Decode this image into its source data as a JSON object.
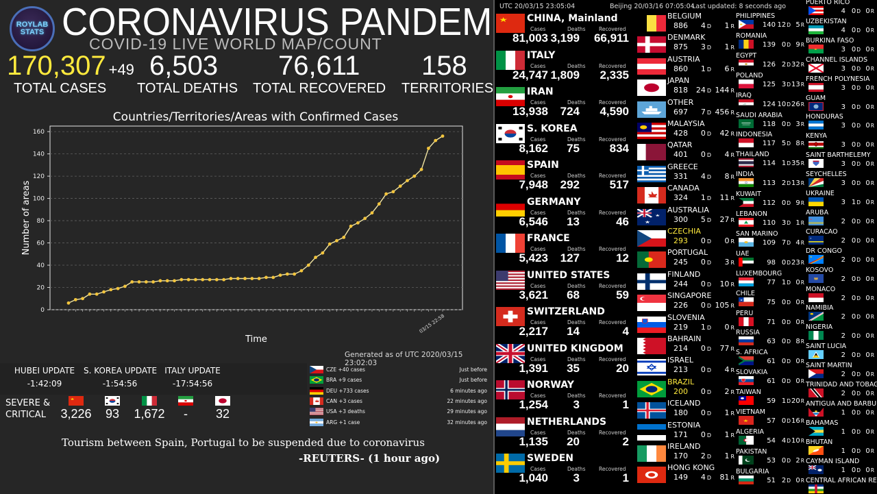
{
  "header": {
    "logo_lines": [
      "ROYLAB",
      "STATS"
    ],
    "title": "CORONAVIRUS PANDEMIC",
    "subtitle": "COVID-19 LIVE WORLD MAP/COUNT",
    "total_cases": "170,307",
    "cases_delta": "+49",
    "total_deaths": "6,503",
    "total_recovered": "76,611",
    "territories": "158",
    "total_cases_label": "TOTAL CASES",
    "total_deaths_label": "TOTAL DEATHS",
    "total_recovered_label": "TOTAL RECOVERED",
    "territories_label": "TERRITORIES",
    "accent_color": "#ffea3d"
  },
  "times": {
    "utc": "UTC 20/03/15 23:05:04",
    "beijing": "Beijing 20/03/16 07:05:04",
    "last_updated": "Last updated: 8 seconds ago"
  },
  "chart_data": {
    "type": "line",
    "title": "Countries/Territories/Areas with Confirmed Cases",
    "xlabel": "Time",
    "ylabel": "Number of areas",
    "ylim": [
      0,
      165
    ],
    "yticks": [
      0,
      20,
      40,
      60,
      80,
      100,
      120,
      140,
      160
    ],
    "grid": true,
    "last_x_label": "03/15 22:58",
    "line_color": "#f3e6a3",
    "marker_color": "#f2c43c",
    "series": [
      {
        "values": [
          6,
          9,
          10,
          14,
          14,
          16,
          18,
          19,
          21,
          25,
          25,
          25,
          25,
          26,
          26,
          26,
          27,
          27,
          27,
          27,
          27,
          27,
          27,
          28,
          28,
          28,
          28,
          28,
          29,
          29,
          31,
          32,
          32,
          35,
          40,
          47,
          51,
          59,
          62,
          65,
          75,
          78,
          82,
          87,
          95,
          104,
          106,
          111,
          116,
          120,
          126,
          145,
          152,
          156
        ]
      }
    ]
  },
  "generated": "Generated as of UTC 2020/03/15 23:02:03",
  "updates": {
    "hubei_label": "HUBEI UPDATE",
    "hubei_value": "-1:42:09",
    "korea_label": "S. KOREA UPDATE",
    "korea_value": "-1:54:56",
    "italy_label": "ITALY UPDATE",
    "italy_value": "-17:54:56"
  },
  "severe": {
    "label_line1": "SEVERE &",
    "label_line2": "CRITICAL",
    "items": [
      {
        "flag": "china-flag-icon",
        "value": "3,226"
      },
      {
        "flag": "south-korea-flag-icon",
        "value": "93"
      },
      {
        "flag": "italy-flag-icon",
        "value": "1,672"
      },
      {
        "flag": "iran-flag-icon",
        "value": "-"
      },
      {
        "flag": "japan-flag-icon",
        "value": "32"
      }
    ]
  },
  "news_feed": [
    {
      "flag": "czech-flag-icon",
      "text": "CZE +40 cases",
      "time": "Just before"
    },
    {
      "flag": "brazil-flag-icon",
      "text": "BRA +9 cases",
      "time": "Just before"
    },
    {
      "flag": "germany-flag-icon",
      "text": "DEU +733 cases",
      "time": "6 minutes ago"
    },
    {
      "flag": "canada-flag-icon",
      "text": "CAN +3 cases",
      "time": "22 minutes ago"
    },
    {
      "flag": "usa-flag-icon",
      "text": "USA +3 deaths",
      "time": "29 minutes ago"
    },
    {
      "flag": "argentina-flag-icon",
      "text": "ARG +1 case",
      "time": "32 minutes ago"
    }
  ],
  "headline": "Tourism between Spain, Portugal to be suspended due to coronavirus",
  "headline_source": "-REUTERS- (1 hour ago)",
  "col_labels": {
    "cases": "Cases",
    "deaths": "Deaths",
    "recovered": "Recovered"
  },
  "big_countries": [
    {
      "name": "CHINA, Mainland",
      "flag": "china-flag-icon",
      "cases": "81,003",
      "deaths": "3,199",
      "recovered": "66,911"
    },
    {
      "name": "ITALY",
      "flag": "italy-flag-icon",
      "cases": "24,747",
      "deaths": "1,809",
      "recovered": "2,335"
    },
    {
      "name": "IRAN",
      "flag": "iran-flag-icon",
      "cases": "13,938",
      "deaths": "724",
      "recovered": "4,590"
    },
    {
      "name": "S. KOREA",
      "flag": "south-korea-flag-icon",
      "cases": "8,162",
      "deaths": "75",
      "recovered": "834"
    },
    {
      "name": "SPAIN",
      "flag": "spain-flag-icon",
      "cases": "7,948",
      "deaths": "292",
      "recovered": "517"
    },
    {
      "name": "GERMANY",
      "flag": "germany-flag-icon",
      "cases": "6,546",
      "deaths": "13",
      "recovered": "46"
    },
    {
      "name": "FRANCE",
      "flag": "france-flag-icon",
      "cases": "5,423",
      "deaths": "127",
      "recovered": "12"
    },
    {
      "name": "UNITED STATES",
      "flag": "usa-flag-icon",
      "cases": "3,621",
      "deaths": "68",
      "recovered": "59"
    },
    {
      "name": "SWITZERLAND",
      "flag": "switzerland-flag-icon",
      "cases": "2,217",
      "deaths": "14",
      "recovered": "4"
    },
    {
      "name": "UNITED KINGDOM",
      "flag": "uk-flag-icon",
      "cases": "1,391",
      "deaths": "35",
      "recovered": "20"
    },
    {
      "name": "NORWAY",
      "flag": "norway-flag-icon",
      "cases": "1,254",
      "deaths": "3",
      "recovered": "1"
    },
    {
      "name": "NETHERLANDS",
      "flag": "netherlands-flag-icon",
      "cases": "1,135",
      "deaths": "20",
      "recovered": "2"
    },
    {
      "name": "SWEDEN",
      "flag": "sweden-flag-icon",
      "cases": "1,040",
      "deaths": "3",
      "recovered": "1"
    }
  ],
  "mid_countries": [
    {
      "name": "BELGIUM",
      "flag": "belgium-flag-icon",
      "c": "886",
      "d": "4",
      "r": "1"
    },
    {
      "name": "DENMARK",
      "flag": "denmark-flag-icon",
      "c": "875",
      "d": "3",
      "r": "1"
    },
    {
      "name": "AUSTRIA",
      "flag": "austria-flag-icon",
      "c": "860",
      "d": "1",
      "r": "6"
    },
    {
      "name": "JAPAN",
      "flag": "japan-flag-icon",
      "c": "818",
      "d": "24",
      "r": "144"
    },
    {
      "name": "OTHER",
      "flag": "cruise-ship-icon",
      "c": "697",
      "d": "7",
      "r": "456"
    },
    {
      "name": "MALAYSIA",
      "flag": "malaysia-flag-icon",
      "c": "428",
      "d": "0",
      "r": "42"
    },
    {
      "name": "QATAR",
      "flag": "qatar-flag-icon",
      "c": "401",
      "d": "0",
      "r": "4"
    },
    {
      "name": "GREECE",
      "flag": "greece-flag-icon",
      "c": "331",
      "d": "4",
      "r": "8"
    },
    {
      "name": "CANADA",
      "flag": "canada-flag-icon",
      "c": "324",
      "d": "1",
      "r": "11"
    },
    {
      "name": "AUSTRALIA",
      "flag": "australia-flag-icon",
      "c": "300",
      "d": "5",
      "r": "27"
    },
    {
      "name": "CZECHIA",
      "flag": "czech-flag-icon",
      "c": "293",
      "d": "0",
      "r": "0",
      "highlight": "#ffea3d"
    },
    {
      "name": "PORTUGAL",
      "flag": "portugal-flag-icon",
      "c": "245",
      "d": "0",
      "r": "3"
    },
    {
      "name": "FINLAND",
      "flag": "finland-flag-icon",
      "c": "244",
      "d": "0",
      "r": "10"
    },
    {
      "name": "SINGAPORE",
      "flag": "singapore-flag-icon",
      "c": "226",
      "d": "0",
      "r": "105"
    },
    {
      "name": "SLOVENIA",
      "flag": "slovenia-flag-icon",
      "c": "219",
      "d": "1",
      "r": "0"
    },
    {
      "name": "BAHRAIN",
      "flag": "bahrain-flag-icon",
      "c": "214",
      "d": "0",
      "r": "77"
    },
    {
      "name": "ISRAEL",
      "flag": "israel-flag-icon",
      "c": "213",
      "d": "0",
      "r": "4"
    },
    {
      "name": "BRAZIL",
      "flag": "brazil-flag-icon",
      "c": "200",
      "d": "0",
      "r": "2",
      "highlight": "#ffea3d"
    },
    {
      "name": "ICELAND",
      "flag": "iceland-flag-icon",
      "c": "180",
      "d": "0",
      "r": "1"
    },
    {
      "name": "ESTONIA",
      "flag": "estonia-flag-icon",
      "c": "171",
      "d": "0",
      "r": "1"
    },
    {
      "name": "IRELAND",
      "flag": "ireland-flag-icon",
      "c": "170",
      "d": "2",
      "r": "1"
    },
    {
      "name": "HONG KONG",
      "flag": "hong-kong-flag-icon",
      "c": "149",
      "d": "4",
      "r": "81"
    }
  ],
  "small_col1": [
    {
      "name": "PHILIPPINES",
      "flag": "philippines-flag-icon",
      "c": "140",
      "d": "12",
      "r": "5"
    },
    {
      "name": "ROMANIA",
      "flag": "romania-flag-icon",
      "c": "139",
      "d": "0",
      "r": "9"
    },
    {
      "name": "EGYPT",
      "flag": "egypt-flag-icon",
      "c": "126",
      "d": "2",
      "r": "32"
    },
    {
      "name": "POLAND",
      "flag": "poland-flag-icon",
      "c": "125",
      "d": "3",
      "r": "13"
    },
    {
      "name": "IRAQ",
      "flag": "iraq-flag-icon",
      "c": "124",
      "d": "10",
      "r": "26"
    },
    {
      "name": "SAUDI ARABIA",
      "flag": "saudi-flag-icon",
      "c": "118",
      "d": "0",
      "r": "3"
    },
    {
      "name": "INDONESIA",
      "flag": "indonesia-flag-icon",
      "c": "117",
      "d": "5",
      "r": "8"
    },
    {
      "name": "THAILAND",
      "flag": "thailand-flag-icon",
      "c": "114",
      "d": "1",
      "r": "35"
    },
    {
      "name": "INDIA",
      "flag": "india-flag-icon",
      "c": "113",
      "d": "2",
      "r": "13"
    },
    {
      "name": "KUWAIT",
      "flag": "kuwait-flag-icon",
      "c": "112",
      "d": "0",
      "r": "9"
    },
    {
      "name": "LEBANON",
      "flag": "lebanon-flag-icon",
      "c": "110",
      "d": "3",
      "r": "1"
    },
    {
      "name": "SAN MARINO",
      "flag": "san-marino-flag-icon",
      "c": "109",
      "d": "7",
      "r": "4"
    },
    {
      "name": "UAE",
      "flag": "uae-flag-icon",
      "c": "98",
      "d": "0",
      "r": "23"
    },
    {
      "name": "LUXEMBOURG",
      "flag": "luxembourg-flag-icon",
      "c": "77",
      "d": "1",
      "r": "0"
    },
    {
      "name": "CHILE",
      "flag": "chile-flag-icon",
      "c": "75",
      "d": "0",
      "r": "0"
    },
    {
      "name": "PERU",
      "flag": "peru-flag-icon",
      "c": "71",
      "d": "0",
      "r": "0"
    },
    {
      "name": "RUSSIA",
      "flag": "russia-flag-icon",
      "c": "63",
      "d": "0",
      "r": "8"
    },
    {
      "name": "S. AFRICA",
      "flag": "south-africa-flag-icon",
      "c": "61",
      "d": "0",
      "r": "0"
    },
    {
      "name": "SLOVAKIA",
      "flag": "slovakia-flag-icon",
      "c": "61",
      "d": "0",
      "r": "0"
    },
    {
      "name": "TAIWAN",
      "flag": "taiwan-flag-icon",
      "c": "59",
      "d": "1",
      "r": "20"
    },
    {
      "name": "VIETNAM",
      "flag": "vietnam-flag-icon",
      "c": "57",
      "d": "0",
      "r": "16"
    },
    {
      "name": "ALGERIA",
      "flag": "algeria-flag-icon",
      "c": "54",
      "d": "4",
      "r": "10"
    },
    {
      "name": "PAKISTAN",
      "flag": "pakistan-flag-icon",
      "c": "53",
      "d": "0",
      "r": "2"
    },
    {
      "name": "BULGARIA",
      "flag": "bulgaria-flag-icon",
      "c": "51",
      "d": "2",
      "r": "0"
    }
  ],
  "small_col2": [
    {
      "name": "PUERTO RICO",
      "flag": "puerto-rico-flag-icon",
      "c": "4",
      "d": "0",
      "r": "0"
    },
    {
      "name": "UZBEKISTAN",
      "flag": "uzbekistan-flag-icon",
      "c": "4",
      "d": "0",
      "r": "0"
    },
    {
      "name": "BURKINA FASO",
      "flag": "burkina-faso-flag-icon",
      "c": "3",
      "d": "0",
      "r": "0"
    },
    {
      "name": "CHANNEL ISLANDS",
      "flag": "channel-islands-flag-icon",
      "c": "3",
      "d": "0",
      "r": "0"
    },
    {
      "name": "FRENCH POLYNESIA",
      "flag": "french-polynesia-flag-icon",
      "c": "3",
      "d": "0",
      "r": "0"
    },
    {
      "name": "GUAM",
      "flag": "guam-flag-icon",
      "c": "3",
      "d": "0",
      "r": "0"
    },
    {
      "name": "HONDURAS",
      "flag": "honduras-flag-icon",
      "c": "3",
      "d": "0",
      "r": "0"
    },
    {
      "name": "KENYA",
      "flag": "kenya-flag-icon",
      "c": "3",
      "d": "0",
      "r": "0"
    },
    {
      "name": "SAINT BARTHELEMY",
      "flag": "saint-barthelemy-flag-icon",
      "c": "3",
      "d": "0",
      "r": "0"
    },
    {
      "name": "SEYCHELLES",
      "flag": "seychelles-flag-icon",
      "c": "3",
      "d": "0",
      "r": "0"
    },
    {
      "name": "UKRAINE",
      "flag": "ukraine-flag-icon",
      "c": "3",
      "d": "1",
      "r": "0"
    },
    {
      "name": "ARUBA",
      "flag": "aruba-flag-icon",
      "c": "2",
      "d": "0",
      "r": "0"
    },
    {
      "name": "CURACAO",
      "flag": "curacao-flag-icon",
      "c": "2",
      "d": "0",
      "r": "0"
    },
    {
      "name": "DR CONGO",
      "flag": "dr-congo-flag-icon",
      "c": "2",
      "d": "0",
      "r": "0"
    },
    {
      "name": "KOSOVO",
      "flag": "kosovo-flag-icon",
      "c": "2",
      "d": "0",
      "r": "0"
    },
    {
      "name": "MONACO",
      "flag": "monaco-flag-icon",
      "c": "2",
      "d": "0",
      "r": "0"
    },
    {
      "name": "NAMIBIA",
      "flag": "namibia-flag-icon",
      "c": "2",
      "d": "0",
      "r": "0"
    },
    {
      "name": "NIGERIA",
      "flag": "nigeria-flag-icon",
      "c": "2",
      "d": "0",
      "r": "0"
    },
    {
      "name": "SAINT LUCIA",
      "flag": "saint-lucia-flag-icon",
      "c": "2",
      "d": "0",
      "r": "0"
    },
    {
      "name": "SAINT MARTIN",
      "flag": "saint-martin-flag-icon",
      "c": "2",
      "d": "0",
      "r": "0"
    },
    {
      "name": "TRINIDAD AND TOBAGO",
      "flag": "trinidad-flag-icon",
      "c": "2",
      "d": "0",
      "r": "0"
    },
    {
      "name": "ANTIGUA AND BARBUDA",
      "flag": "antigua-flag-icon",
      "c": "1",
      "d": "0",
      "r": "0"
    },
    {
      "name": "BAHAMAS",
      "flag": "bahamas-flag-icon",
      "c": "1",
      "d": "0",
      "r": "0"
    },
    {
      "name": "BHUTAN",
      "flag": "bhutan-flag-icon",
      "c": "1",
      "d": "0",
      "r": "0"
    },
    {
      "name": "CAYMAN ISLAND",
      "flag": "cayman-flag-icon",
      "c": "1",
      "d": "0",
      "r": "0"
    },
    {
      "name": "CENTRAL AFRICAN REP",
      "flag": "car-flag-icon",
      "c": "",
      "d": "",
      "r": ""
    }
  ]
}
